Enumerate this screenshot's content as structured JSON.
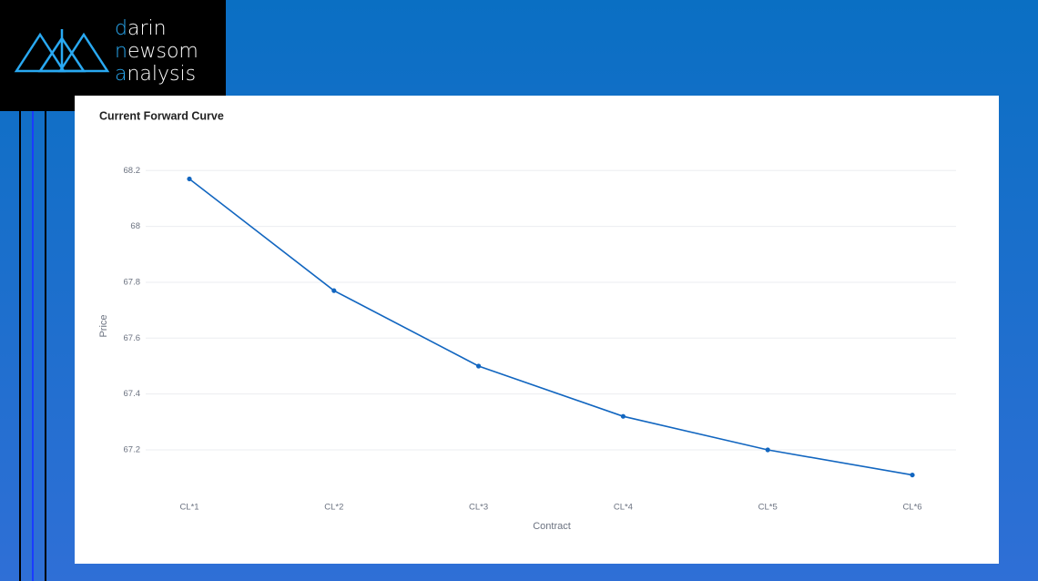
{
  "logo": {
    "lines": [
      "darin",
      "newsom",
      "analysis"
    ]
  },
  "chart_data": {
    "type": "line",
    "title": "Current Forward Curve",
    "x_label": "Contract",
    "y_label": "Price",
    "categories": [
      "CL*1",
      "CL*2",
      "CL*3",
      "CL*4",
      "CL*5",
      "CL*6"
    ],
    "values": [
      68.17,
      67.77,
      67.5,
      67.32,
      67.2,
      67.11
    ],
    "color": "#1266c0",
    "ylim": [
      67.05,
      68.24
    ],
    "yticks": [
      67.2,
      67.4,
      67.6,
      67.8,
      68,
      68.2
    ],
    "grid": true
  }
}
